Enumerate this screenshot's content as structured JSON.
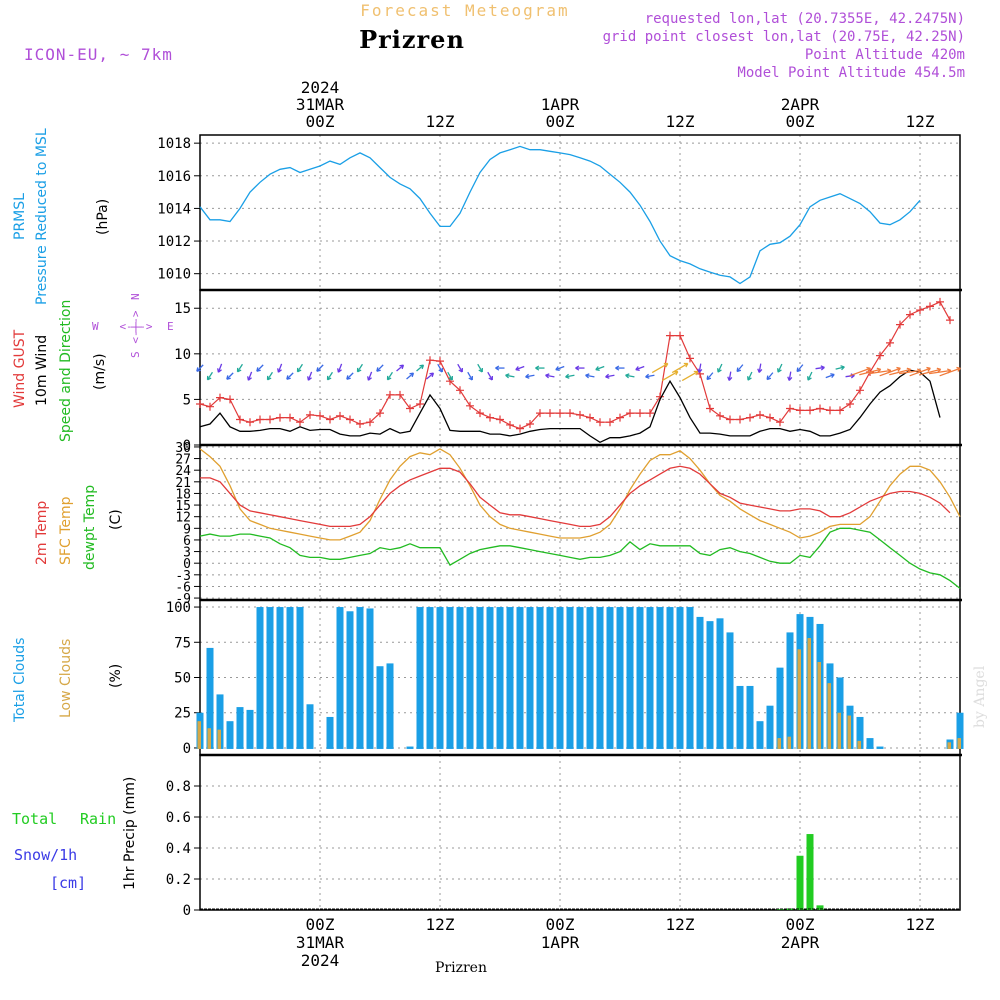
{
  "header": {
    "product": "Forecast Meteogram",
    "location": "Prizren",
    "model": "ICON-EU, ~ 7km",
    "requested_point": "requested lon,lat (20.7355E, 42.2475N)",
    "grid_point": "grid point closest lon,lat (20.75E, 42.25N)",
    "point_altitude": "Point Altitude 420m",
    "model_altitude": "Model Point Altitude 454.5m",
    "credit": "by Angel",
    "footer_location": "Prizren"
  },
  "colors": {
    "pressure": "#1a9fe6",
    "gust": "#e23a3a",
    "wind": "#000000",
    "wind_label": "#22bb22",
    "compass": "#b04fd8",
    "temp2m": "#e23a3a",
    "sfc_temp": "#e0a030",
    "dewpoint": "#22bb22",
    "total_clouds": "#1a9fe6",
    "low_clouds": "#d6a848",
    "rain": "#22cc22",
    "snow_label": "#3a3ae6",
    "title_orange": "#f0c070",
    "info_purple": "#b04fd8"
  },
  "time_axis": {
    "top_labels": [
      {
        "h": 12,
        "lines": [
          "2024",
          "31MAR",
          "00Z"
        ]
      },
      {
        "h": 24,
        "lines": [
          "12Z"
        ]
      },
      {
        "h": 36,
        "lines": [
          "1APR",
          "00Z"
        ]
      },
      {
        "h": 48,
        "lines": [
          "12Z"
        ]
      },
      {
        "h": 60,
        "lines": [
          "2APR",
          "00Z"
        ]
      },
      {
        "h": 72,
        "lines": [
          "12Z"
        ]
      }
    ],
    "bottom_labels": [
      {
        "h": 12,
        "lines": [
          "00Z",
          "31MAR",
          "2024"
        ]
      },
      {
        "h": 24,
        "lines": [
          "12Z"
        ]
      },
      {
        "h": 36,
        "lines": [
          "00Z",
          "1APR"
        ]
      },
      {
        "h": 48,
        "lines": [
          "12Z"
        ]
      },
      {
        "h": 60,
        "lines": [
          "00Z",
          "2APR"
        ]
      },
      {
        "h": 72,
        "lines": [
          "12Z"
        ]
      }
    ]
  },
  "chart_data": [
    {
      "type": "line",
      "panel": "pressure",
      "title": "PRMSL Pressure Reduced to MSL",
      "ylabel": "(hPa)",
      "ylim": [
        1009,
        1018.5
      ],
      "yticks": [
        1010,
        1012,
        1014,
        1016,
        1018
      ],
      "x": [
        0,
        1,
        2,
        3,
        4,
        5,
        6,
        7,
        8,
        9,
        10,
        11,
        12,
        13,
        14,
        15,
        16,
        17,
        18,
        19,
        20,
        21,
        22,
        23,
        24,
        25,
        26,
        27,
        28,
        29,
        30,
        31,
        32,
        33,
        34,
        35,
        36,
        37,
        38,
        39,
        40,
        41,
        42,
        43,
        44,
        45,
        46,
        47,
        48,
        49,
        50,
        51,
        52,
        53,
        54,
        55,
        56,
        57,
        58,
        59,
        60,
        61,
        62,
        63,
        64,
        65,
        66,
        67,
        68,
        69,
        70,
        71,
        72,
        73,
        74,
        75,
        76
      ],
      "series": [
        {
          "name": "PRMSL",
          "values": [
            1014.1,
            1013.3,
            1013.3,
            1013.2,
            1014.0,
            1015.0,
            1015.6,
            1016.1,
            1016.4,
            1016.5,
            1016.2,
            1016.4,
            1016.6,
            1016.9,
            1016.7,
            1017.1,
            1017.4,
            1017.1,
            1016.5,
            1015.9,
            1015.5,
            1015.2,
            1014.6,
            1013.7,
            1012.9,
            1012.9,
            1013.7,
            1015.0,
            1016.2,
            1017.0,
            1017.4,
            1017.6,
            1017.8,
            1017.6,
            1017.6,
            1017.5,
            1017.4,
            1017.3,
            1017.1,
            1016.9,
            1016.6,
            1016.1,
            1015.6,
            1015.0,
            1014.2,
            1013.2,
            1012.0,
            1011.1,
            1010.8,
            1010.6,
            1010.3,
            1010.1,
            1009.9,
            1009.8,
            1009.4,
            1009.8,
            1011.4,
            1011.8,
            1011.9,
            1012.3,
            1013.0,
            1014.1,
            1014.5,
            1014.7,
            1014.9,
            1014.6,
            1014.3,
            1013.8,
            1013.1,
            1013.0,
            1013.3,
            1013.8,
            1014.5,
            null,
            null,
            null,
            null
          ]
        }
      ]
    },
    {
      "type": "line",
      "panel": "wind",
      "title": "Wind GUST / 10m Wind Speed and Direction",
      "ylabel": "(m/s)",
      "ylim": [
        0,
        17
      ],
      "yticks": [
        0,
        5,
        10,
        15
      ],
      "compass": {
        "n": "N",
        "s": "S",
        "w": "W",
        "e": "E",
        "arrow": "<-|->"
      },
      "x": [
        0,
        1,
        2,
        3,
        4,
        5,
        6,
        7,
        8,
        9,
        10,
        11,
        12,
        13,
        14,
        15,
        16,
        17,
        18,
        19,
        20,
        21,
        22,
        23,
        24,
        25,
        26,
        27,
        28,
        29,
        30,
        31,
        32,
        33,
        34,
        35,
        36,
        37,
        38,
        39,
        40,
        41,
        42,
        43,
        44,
        45,
        46,
        47,
        48,
        49,
        50,
        51,
        52,
        53,
        54,
        55,
        56,
        57,
        58,
        59,
        60,
        61,
        62,
        63,
        64,
        65,
        66,
        67,
        68,
        69,
        70,
        71,
        72,
        73,
        74,
        75,
        76
      ],
      "series": [
        {
          "name": "Wind GUST",
          "values": [
            4.5,
            4.2,
            5.2,
            5.0,
            2.8,
            2.5,
            2.8,
            2.8,
            3.0,
            3.0,
            2.5,
            3.3,
            3.2,
            2.8,
            3.2,
            2.8,
            2.3,
            2.5,
            3.5,
            5.5,
            5.5,
            4.0,
            4.5,
            9.3,
            9.2,
            7.0,
            6.0,
            4.3,
            3.5,
            3.0,
            2.8,
            2.2,
            1.8,
            2.3,
            3.5,
            3.5,
            3.5,
            3.5,
            3.3,
            3.0,
            2.5,
            2.5,
            3.0,
            3.5,
            3.5,
            3.5,
            5.3,
            12.0,
            12.0,
            9.5,
            7.8,
            4.0,
            3.2,
            2.8,
            2.8,
            3.0,
            3.3,
            3.0,
            2.5,
            4.0,
            3.8,
            3.8,
            4.0,
            3.8,
            3.8,
            4.5,
            6.0,
            8.0,
            9.8,
            11.2,
            13.2,
            14.3,
            14.8,
            15.2,
            15.7,
            13.7,
            null
          ]
        },
        {
          "name": "10m Wind",
          "values": [
            2.0,
            2.3,
            3.5,
            2.0,
            1.5,
            1.5,
            1.6,
            1.8,
            1.8,
            1.5,
            2.0,
            1.6,
            1.7,
            1.7,
            1.2,
            1.0,
            1.0,
            1.3,
            1.2,
            1.8,
            1.3,
            1.5,
            3.5,
            5.5,
            4.0,
            1.6,
            1.5,
            1.5,
            1.5,
            1.2,
            1.2,
            1.0,
            1.2,
            1.5,
            1.7,
            1.8,
            1.8,
            1.8,
            1.8,
            1.0,
            0.3,
            0.8,
            0.8,
            1.0,
            1.3,
            2.0,
            5.0,
            7.0,
            5.2,
            3.0,
            1.3,
            1.3,
            1.2,
            1.0,
            1.0,
            1.0,
            1.5,
            1.8,
            1.8,
            1.5,
            1.7,
            1.5,
            1.0,
            1.0,
            1.3,
            1.7,
            3.0,
            4.5,
            5.8,
            6.5,
            7.5,
            8.2,
            8.0,
            7.0,
            3.0,
            null,
            null
          ]
        }
      ]
    },
    {
      "type": "line",
      "panel": "temperature",
      "title": "2m Temp / SFC Temp / dewpt Temp",
      "ylabel": "(C)",
      "ylim": [
        -9.5,
        30.5
      ],
      "yticks": [
        -9,
        -6,
        -3,
        0,
        3,
        6,
        9,
        12,
        15,
        18,
        21,
        24,
        27,
        30
      ],
      "x": [
        0,
        1,
        2,
        3,
        4,
        5,
        6,
        7,
        8,
        9,
        10,
        11,
        12,
        13,
        14,
        15,
        16,
        17,
        18,
        19,
        20,
        21,
        22,
        23,
        24,
        25,
        26,
        27,
        28,
        29,
        30,
        31,
        32,
        33,
        34,
        35,
        36,
        37,
        38,
        39,
        40,
        41,
        42,
        43,
        44,
        45,
        46,
        47,
        48,
        49,
        50,
        51,
        52,
        53,
        54,
        55,
        56,
        57,
        58,
        59,
        60,
        61,
        62,
        63,
        64,
        65,
        66,
        67,
        68,
        69,
        70,
        71,
        72,
        73,
        74,
        75,
        76
      ],
      "series": [
        {
          "name": "2m Temp",
          "values": [
            22,
            22,
            21,
            18,
            15,
            13.5,
            13,
            12.5,
            12,
            11.5,
            11,
            10.5,
            10,
            9.5,
            9.5,
            9.5,
            10,
            12,
            15,
            18,
            20,
            21.5,
            22.5,
            23.5,
            24.5,
            24.5,
            23.5,
            20.5,
            17,
            15,
            13,
            12.5,
            12.5,
            12,
            11.5,
            11,
            10.5,
            10,
            9.5,
            9.5,
            10,
            12,
            15,
            18,
            20,
            21.5,
            23,
            24.5,
            25,
            24.5,
            23,
            20.5,
            18,
            17,
            15.5,
            15,
            14.5,
            14,
            13.5,
            13.5,
            14,
            14,
            13.5,
            12,
            12,
            13,
            14.5,
            16,
            17,
            18,
            18.5,
            18.5,
            18,
            17,
            15.5,
            13,
            null
          ]
        },
        {
          "name": "SFC Temp",
          "values": [
            29.5,
            27.5,
            25,
            20,
            14,
            11,
            10,
            9,
            8.5,
            8,
            7.5,
            7,
            6.5,
            6,
            6,
            7,
            8,
            11,
            16.5,
            21.5,
            25,
            27.5,
            28.5,
            28,
            29.5,
            28,
            24.5,
            20,
            15,
            12,
            10,
            9,
            8.5,
            8,
            7.5,
            7,
            6.5,
            6.5,
            6.5,
            7,
            8,
            10,
            14,
            19,
            23,
            26.5,
            28,
            28,
            29,
            27,
            24,
            20.5,
            17.5,
            16,
            14,
            12.5,
            11,
            10,
            9,
            8,
            6.5,
            7,
            8,
            9.5,
            10,
            10,
            10,
            12,
            16,
            20,
            23,
            25,
            25,
            24,
            21,
            17,
            12
          ]
        },
        {
          "name": "dewpt Temp",
          "values": [
            7,
            7.5,
            7,
            7,
            7.5,
            7.5,
            7,
            6.5,
            5,
            4,
            2,
            1.5,
            1.5,
            1,
            1,
            1.5,
            2,
            2.5,
            4,
            3.5,
            4,
            5,
            4,
            4,
            4,
            -0.5,
            1,
            2.5,
            3.5,
            4,
            4.5,
            4.5,
            4,
            3.5,
            3,
            2.5,
            2,
            1.5,
            1,
            1.5,
            1.5,
            2,
            3,
            5.5,
            3.5,
            5,
            4.5,
            4.5,
            4.5,
            4.5,
            2.5,
            2,
            3.5,
            4,
            3,
            2.5,
            1.5,
            0.5,
            0,
            0,
            2,
            1.5,
            4.5,
            8,
            9,
            9,
            8.5,
            8,
            6,
            4,
            2,
            0,
            -1.5,
            -2.5,
            -3,
            -4.5,
            -6.5
          ]
        }
      ]
    },
    {
      "type": "bar",
      "panel": "clouds",
      "title": "Total Clouds / Low Clouds",
      "ylabel": "(%)",
      "ylim": [
        -5,
        105
      ],
      "yticks": [
        0,
        25,
        50,
        75,
        100
      ],
      "x": [
        0,
        1,
        2,
        3,
        4,
        5,
        6,
        7,
        8,
        9,
        10,
        11,
        12,
        13,
        14,
        15,
        16,
        17,
        18,
        19,
        20,
        21,
        22,
        23,
        24,
        25,
        26,
        27,
        28,
        29,
        30,
        31,
        32,
        33,
        34,
        35,
        36,
        37,
        38,
        39,
        40,
        41,
        42,
        43,
        44,
        45,
        46,
        47,
        48,
        49,
        50,
        51,
        52,
        53,
        54,
        55,
        56,
        57,
        58,
        59,
        60,
        61,
        62,
        63,
        64,
        65,
        66,
        67,
        68,
        69,
        70,
        71,
        72,
        73,
        74,
        75,
        76
      ],
      "series": [
        {
          "name": "Total Clouds",
          "values": [
            25,
            71,
            38,
            19,
            29,
            27,
            100,
            100,
            100,
            100,
            100,
            31,
            0,
            22,
            100,
            97,
            100,
            99,
            58,
            60,
            0,
            1,
            100,
            100,
            100,
            100,
            100,
            100,
            100,
            100,
            100,
            100,
            100,
            100,
            100,
            100,
            100,
            100,
            100,
            100,
            100,
            100,
            100,
            100,
            100,
            100,
            100,
            100,
            100,
            100,
            93,
            90,
            92,
            82,
            44,
            44,
            19,
            30,
            57,
            82,
            95,
            93,
            88,
            60,
            50,
            30,
            22,
            7,
            1,
            0,
            0,
            0,
            0,
            0,
            0,
            6,
            25
          ]
        },
        {
          "name": "Low Clouds",
          "values": [
            19,
            14,
            13,
            0,
            0,
            0,
            0,
            0,
            0,
            0,
            0,
            0,
            0,
            0,
            0,
            0,
            0,
            0,
            0,
            0,
            0,
            0,
            0,
            0,
            0,
            0,
            0,
            0,
            0,
            0,
            0,
            0,
            0,
            0,
            0,
            0,
            0,
            0,
            0,
            0,
            0,
            0,
            0,
            0,
            0,
            0,
            0,
            0,
            0,
            0,
            0,
            0,
            0,
            0,
            0,
            0,
            0,
            0,
            7,
            8,
            70,
            78,
            61,
            46,
            25,
            23,
            5,
            0,
            0,
            0,
            0,
            0,
            0,
            0,
            0,
            4,
            7
          ]
        }
      ]
    },
    {
      "type": "bar",
      "panel": "precipitation",
      "title": "Total Rain / Snow/1h [cm]",
      "ylabel": "1hr Precip (mm)",
      "ylim": [
        0,
        1.0
      ],
      "yticks": [
        0,
        0.2,
        0.4,
        0.6,
        0.8
      ],
      "x": [
        58,
        59,
        60,
        61,
        62,
        63,
        64
      ],
      "series": [
        {
          "name": "Total Rain",
          "values": [
            0.005,
            0.01,
            0.35,
            0.49,
            0.03,
            0.0,
            0.0
          ]
        }
      ]
    }
  ],
  "legend_text": {
    "pressure": [
      "PRMSL",
      "Pressure Reduced to MSL"
    ],
    "wind": [
      "Wind GUST",
      "10m Wind",
      "Speed and Direction"
    ],
    "temp": [
      "2m Temp",
      "SFC Temp",
      "dewpt Temp"
    ],
    "clouds": [
      "Total Clouds",
      "Low Clouds"
    ],
    "precip": [
      "Total",
      "Rain",
      "Snow/1h",
      "[cm]"
    ]
  }
}
